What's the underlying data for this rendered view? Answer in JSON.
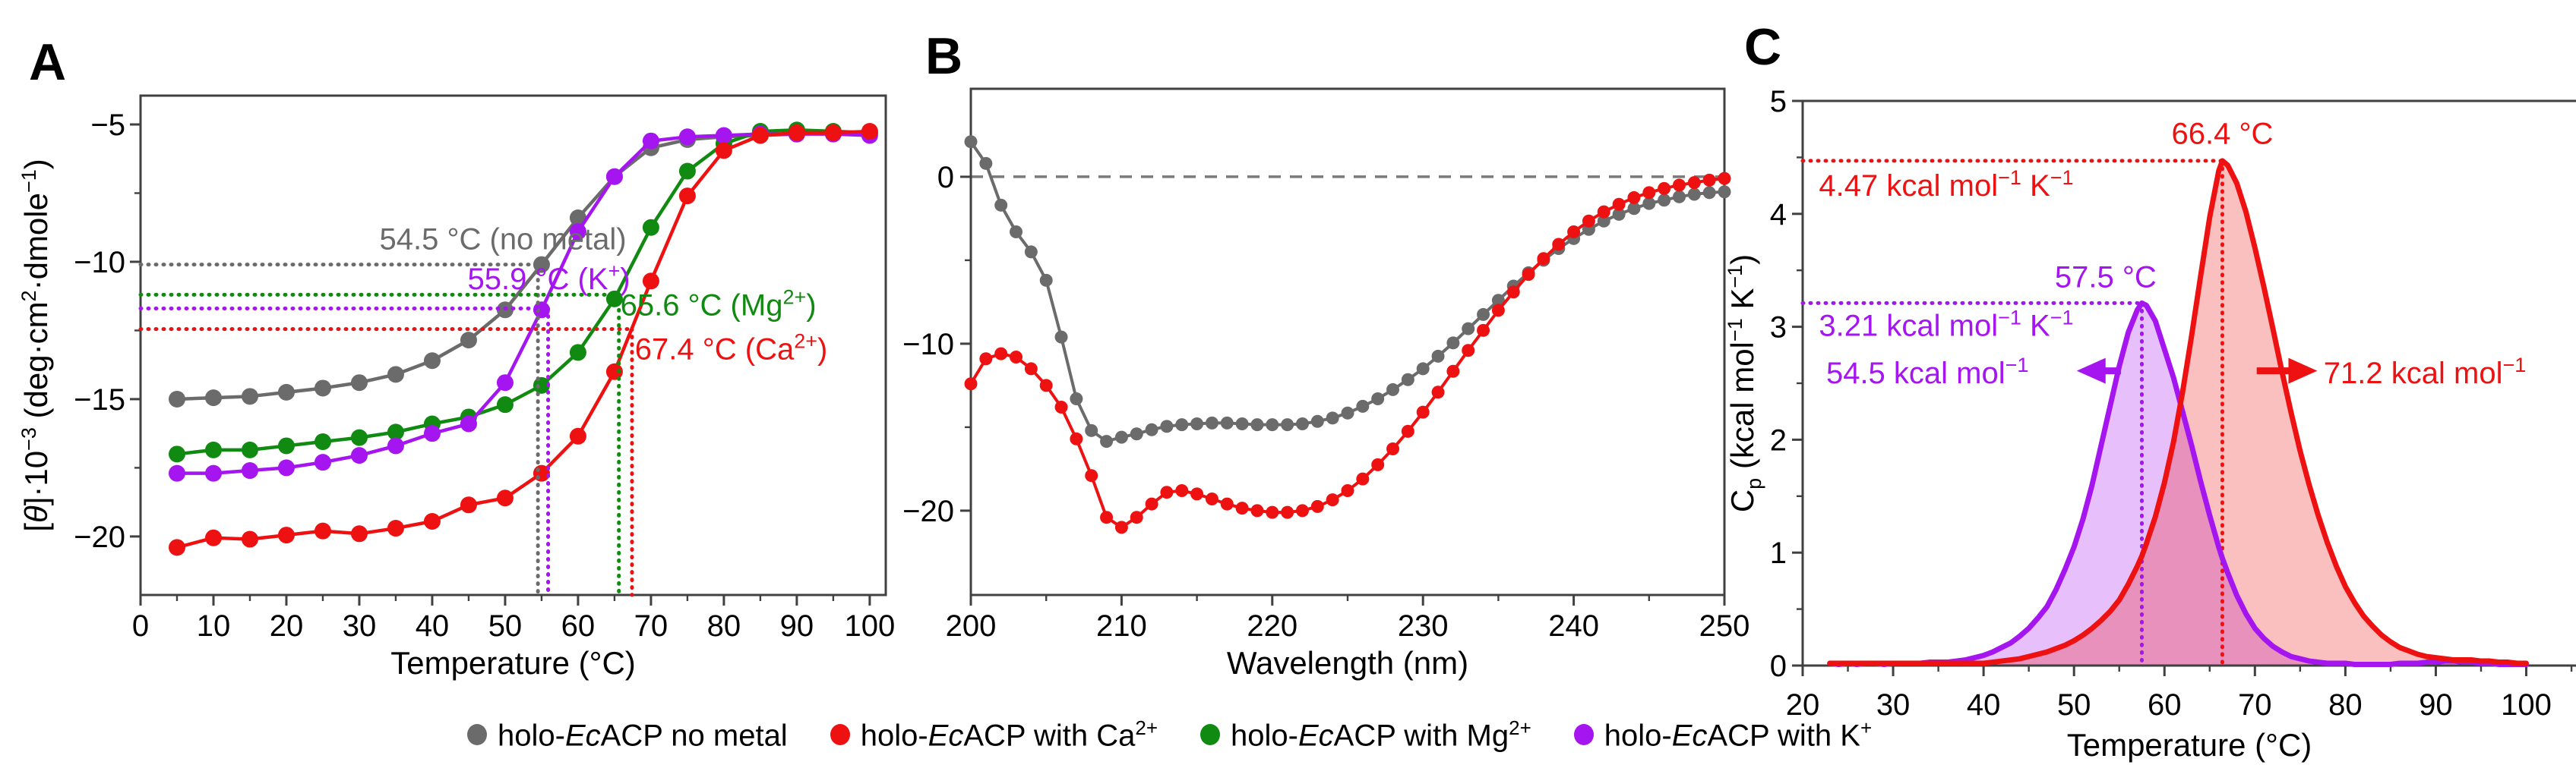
{
  "figure": {
    "panel_letters": [
      "A",
      "B",
      "C"
    ]
  },
  "colors": {
    "gray": "#6b6b6b",
    "red": "#ee1111",
    "green": "#118a11",
    "purple": "#a515f0",
    "axis": "#404040",
    "zero_dash": "#7a7a7a"
  },
  "legend": {
    "items": [
      {
        "prefix": "holo-",
        "em": "Ec",
        "rest": "ACP no metal",
        "sup": "",
        "color": "gray"
      },
      {
        "prefix": "holo-",
        "em": "Ec",
        "rest": "ACP with Ca",
        "sup": "2+",
        "color": "red"
      },
      {
        "prefix": "holo-",
        "em": "Ec",
        "rest": "ACP with Mg",
        "sup": "2+",
        "color": "green"
      },
      {
        "prefix": "holo-",
        "em": "Ec",
        "rest": "ACP with K",
        "sup": "+",
        "color": "purple"
      }
    ]
  },
  "chart_data": [
    {
      "id": "A",
      "type": "line",
      "xlabel": "Temperature (°C)",
      "ylabel_parts": [
        {
          "t": "["
        },
        {
          "t": "θ",
          "style": "i"
        },
        {
          "t": "]·10"
        },
        {
          "t": "−3",
          "style": "sup"
        },
        {
          "t": " (deg·cm"
        },
        {
          "t": "2",
          "style": "sup"
        },
        {
          "t": "·dmole"
        },
        {
          "t": "−1",
          "style": "sup"
        },
        {
          "t": ")"
        }
      ],
      "xlim": [
        0,
        102.2
      ],
      "ylim": [
        -22.13,
        -3.95
      ],
      "x_major_ticks": [
        0,
        10,
        20,
        30,
        40,
        50,
        60,
        70,
        80,
        90,
        100
      ],
      "x_minor_ticks": [
        5,
        15,
        25,
        35,
        45,
        55,
        65,
        75,
        85,
        95
      ],
      "y_major_ticks": [
        -5,
        -10,
        -15,
        -20
      ],
      "y_minor_ticks": [
        -7.5,
        -12.5,
        -17.5
      ],
      "x": [
        5,
        10,
        15,
        20,
        25,
        30,
        35,
        40,
        45,
        50,
        55,
        60,
        65,
        70,
        75,
        80,
        85,
        90,
        95,
        100
      ],
      "series": [
        {
          "name": "holo-EcACP no metal",
          "color": "gray",
          "values": [
            -15.0,
            -14.95,
            -14.9,
            -14.75,
            -14.6,
            -14.4,
            -14.1,
            -13.6,
            -12.85,
            -11.75,
            -10.1,
            -8.4,
            -6.9,
            -5.85,
            -5.55,
            -5.45,
            -5.4,
            -5.35,
            -5.3,
            -5.3
          ]
        },
        {
          "name": "holo-EcACP with Mg2+",
          "color": "green",
          "values": [
            -17.0,
            -16.85,
            -16.85,
            -16.7,
            -16.55,
            -16.4,
            -16.2,
            -15.9,
            -15.65,
            -15.2,
            -14.5,
            -13.3,
            -11.35,
            -8.75,
            -6.7,
            -5.7,
            -5.25,
            -5.2,
            -5.25,
            -5.3
          ]
        },
        {
          "name": "holo-EcACP with K+",
          "color": "purple",
          "values": [
            -17.7,
            -17.7,
            -17.6,
            -17.5,
            -17.3,
            -17.05,
            -16.7,
            -16.25,
            -15.9,
            -14.4,
            -11.75,
            -8.9,
            -6.9,
            -5.6,
            -5.45,
            -5.4,
            -5.35,
            -5.35,
            -5.35,
            -5.4
          ]
        },
        {
          "name": "holo-EcACP with Ca2+",
          "color": "red",
          "values": [
            -20.4,
            -20.05,
            -20.1,
            -19.95,
            -19.8,
            -19.9,
            -19.7,
            -19.45,
            -18.85,
            -18.6,
            -17.7,
            -16.35,
            -14.0,
            -10.7,
            -7.6,
            -5.95,
            -5.4,
            -5.3,
            -5.3,
            -5.25
          ]
        }
      ],
      "guides": [
        {
          "color": "gray",
          "y": -10.1,
          "tm": 54.5
        },
        {
          "color": "green",
          "y": -11.2,
          "tm": 65.6
        },
        {
          "color": "purple",
          "y": -11.7,
          "tm": 55.9
        },
        {
          "color": "red",
          "y": -12.45,
          "tm": 67.4
        }
      ],
      "annotations": [
        {
          "parts": [
            {
              "t": "54.5 °C (no metal)"
            }
          ],
          "color": "gray",
          "x": 49.7,
          "y": -9.55,
          "anchor": "middle"
        },
        {
          "parts": [
            {
              "t": "55.9 °C (K"
            },
            {
              "t": "+",
              "style": "sup"
            },
            {
              "t": ")"
            }
          ],
          "color": "purple",
          "x": 56.0,
          "y": -11.0,
          "anchor": "middle"
        },
        {
          "parts": [
            {
              "t": "65.6 °C (Mg"
            },
            {
              "t": "2+",
              "style": "sup"
            },
            {
              "t": ")"
            }
          ],
          "color": "green",
          "x": 65.8,
          "y": -11.95,
          "anchor": "start"
        },
        {
          "parts": [
            {
              "t": "67.4 °C (Ca"
            },
            {
              "t": "2+",
              "style": "sup"
            },
            {
              "t": ")"
            }
          ],
          "color": "red",
          "x": 67.8,
          "y": -13.55,
          "anchor": "start"
        }
      ]
    },
    {
      "id": "B",
      "type": "line",
      "xlabel": "Wavelength (nm)",
      "xlim": [
        200,
        250
      ],
      "ylim": [
        -25.05,
        5.27
      ],
      "x_major_ticks": [
        200,
        210,
        220,
        230,
        240,
        250
      ],
      "x_minor_ticks": [
        205,
        215,
        225,
        235,
        245
      ],
      "y_major_ticks": [
        0,
        -10,
        -20
      ],
      "y_minor_ticks": [
        -5,
        -15
      ],
      "zero_line": 0,
      "x_start": 200,
      "x_step": 1,
      "series": [
        {
          "name": "holo-EcACP no metal",
          "color": "gray",
          "values": [
            2.1,
            0.8,
            -1.7,
            -3.3,
            -4.5,
            -6.2,
            -9.6,
            -13.3,
            -15.2,
            -15.85,
            -15.6,
            -15.4,
            -15.15,
            -14.95,
            -14.85,
            -14.8,
            -14.75,
            -14.75,
            -14.8,
            -14.85,
            -14.85,
            -14.85,
            -14.8,
            -14.65,
            -14.45,
            -14.15,
            -13.75,
            -13.3,
            -12.75,
            -12.15,
            -11.5,
            -10.75,
            -9.95,
            -9.1,
            -8.25,
            -7.4,
            -6.55,
            -5.75,
            -5.0,
            -4.3,
            -3.7,
            -3.15,
            -2.65,
            -2.25,
            -1.9,
            -1.6,
            -1.4,
            -1.2,
            -1.05,
            -0.95,
            -0.9
          ]
        },
        {
          "name": "holo-EcACP with Ca2+",
          "color": "red",
          "values": [
            -12.4,
            -10.9,
            -10.6,
            -10.8,
            -11.5,
            -12.5,
            -13.8,
            -15.7,
            -17.9,
            -20.4,
            -21.0,
            -20.4,
            -19.6,
            -18.9,
            -18.8,
            -19.0,
            -19.3,
            -19.6,
            -19.85,
            -20.0,
            -20.1,
            -20.1,
            -20.0,
            -19.75,
            -19.35,
            -18.8,
            -18.1,
            -17.25,
            -16.3,
            -15.25,
            -14.1,
            -12.9,
            -11.65,
            -10.4,
            -9.2,
            -8.0,
            -6.9,
            -5.85,
            -4.9,
            -4.05,
            -3.3,
            -2.65,
            -2.1,
            -1.65,
            -1.25,
            -0.95,
            -0.7,
            -0.5,
            -0.35,
            -0.2,
            -0.1
          ]
        }
      ]
    },
    {
      "id": "C",
      "type": "area",
      "xlabel": "Temperature (°C)",
      "ylabel_parts": [
        {
          "t": "C"
        },
        {
          "t": "p",
          "style": "sub"
        },
        {
          "t": " (kcal mol"
        },
        {
          "t": "−1",
          "style": "sup"
        },
        {
          "t": " K"
        },
        {
          "t": "−1",
          "style": "sup"
        },
        {
          "t": ")"
        }
      ],
      "xlim": [
        20,
        105.5
      ],
      "ylim": [
        0,
        5
      ],
      "x_major_ticks": [
        20,
        30,
        40,
        50,
        60,
        70,
        80,
        90,
        100
      ],
      "x_minor_ticks": [
        25,
        35,
        45,
        55,
        65,
        75,
        85,
        95,
        105
      ],
      "y_major_ticks": [
        0,
        1,
        2,
        3,
        4,
        5
      ],
      "y_minor_ticks": [
        0.5,
        1.5,
        2.5,
        3.5,
        4.5
      ],
      "x": [
        23,
        24,
        25,
        26,
        27,
        28,
        29,
        30,
        31,
        32,
        33,
        34,
        35,
        36,
        37,
        38,
        39,
        40,
        41,
        42,
        43,
        44,
        45,
        46,
        47,
        48,
        49,
        50,
        51,
        52,
        53,
        54,
        55,
        56,
        57,
        57.5,
        58,
        59,
        60,
        61,
        62,
        63,
        64,
        65,
        66,
        66.4,
        67,
        68,
        69,
        70,
        71,
        72,
        73,
        74,
        75,
        76,
        77,
        78,
        79,
        80,
        81,
        82,
        83,
        84,
        85,
        86,
        87,
        88,
        89,
        90,
        91,
        92,
        93,
        94,
        95,
        96,
        97,
        98,
        99,
        100
      ],
      "series": [
        {
          "name": "holo-EcACP with K+",
          "color": "purple",
          "peak_tm": 57.5,
          "peak_cp": 3.21,
          "dH": "54.5 kcal mol-1",
          "values": [
            0.02,
            0.01,
            0.02,
            0.01,
            0.02,
            0.02,
            0.01,
            0.02,
            0.02,
            0.02,
            0.02,
            0.03,
            0.03,
            0.03,
            0.04,
            0.05,
            0.07,
            0.09,
            0.12,
            0.16,
            0.2,
            0.26,
            0.33,
            0.42,
            0.52,
            0.67,
            0.85,
            1.05,
            1.3,
            1.6,
            1.95,
            2.3,
            2.65,
            2.95,
            3.15,
            3.21,
            3.19,
            3.05,
            2.8,
            2.55,
            2.25,
            1.95,
            1.63,
            1.33,
            1.05,
            0.95,
            0.82,
            0.62,
            0.46,
            0.33,
            0.24,
            0.17,
            0.12,
            0.08,
            0.06,
            0.04,
            0.03,
            0.02,
            0.02,
            0.02,
            0.01,
            0.01,
            0.01,
            0.01,
            0.01,
            0.02,
            0.02,
            0.02,
            0.03,
            0.03,
            0.04,
            0.04,
            0.03,
            0.03,
            0.02,
            0.02,
            0.01,
            0.01,
            0.01,
            0.01
          ]
        },
        {
          "name": "holo-EcACP with Ca2+",
          "color": "red",
          "peak_tm": 66.4,
          "peak_cp": 4.47,
          "dH": "71.2 kcal mol-1",
          "values": [
            0.02,
            0.02,
            0.02,
            0.02,
            0.02,
            0.02,
            0.02,
            0.02,
            0.02,
            0.02,
            0.02,
            0.02,
            0.02,
            0.02,
            0.02,
            0.02,
            0.02,
            0.02,
            0.03,
            0.04,
            0.05,
            0.06,
            0.08,
            0.1,
            0.12,
            0.15,
            0.18,
            0.22,
            0.27,
            0.33,
            0.4,
            0.48,
            0.58,
            0.72,
            0.88,
            0.97,
            1.08,
            1.32,
            1.62,
            1.98,
            2.42,
            2.92,
            3.45,
            3.97,
            4.38,
            4.47,
            4.43,
            4.27,
            4.02,
            3.7,
            3.35,
            2.98,
            2.6,
            2.24,
            1.9,
            1.6,
            1.33,
            1.09,
            0.88,
            0.7,
            0.56,
            0.44,
            0.35,
            0.27,
            0.21,
            0.16,
            0.13,
            0.1,
            0.08,
            0.07,
            0.06,
            0.05,
            0.05,
            0.05,
            0.04,
            0.04,
            0.03,
            0.03,
            0.02,
            0.02
          ]
        }
      ],
      "guides": [
        {
          "color": "purple",
          "tm": 57.5,
          "cp": 3.21
        },
        {
          "color": "red",
          "tm": 66.4,
          "cp": 4.47
        }
      ],
      "annotations": [
        {
          "parts": [
            {
              "t": "66.4 °C"
            }
          ],
          "color": "red",
          "x": 66.4,
          "y": 4.62,
          "anchor": "middle"
        },
        {
          "parts": [
            {
              "t": "4.47 kcal mol"
            },
            {
              "t": "−1",
              "style": "sup"
            },
            {
              "t": " K"
            },
            {
              "t": "−1",
              "style": "sup"
            }
          ],
          "color": "red",
          "x": 21.8,
          "y": 4.16,
          "anchor": "start"
        },
        {
          "parts": [
            {
              "t": "57.5 °C"
            }
          ],
          "color": "purple",
          "x": 53.5,
          "y": 3.35,
          "anchor": "middle"
        },
        {
          "parts": [
            {
              "t": "3.21 kcal mol"
            },
            {
              "t": "−1",
              "style": "sup"
            },
            {
              "t": " K"
            },
            {
              "t": "−1",
              "style": "sup"
            }
          ],
          "color": "purple",
          "x": 21.8,
          "y": 2.92,
          "anchor": "start"
        },
        {
          "parts": [
            {
              "t": "54.5 kcal mol"
            },
            {
              "t": "−1",
              "style": "sup"
            }
          ],
          "color": "purple",
          "x": 22.6,
          "y": 2.5,
          "anchor": "start"
        },
        {
          "parts": [
            {
              "t": "71.2 kcal mol"
            },
            {
              "t": "−1",
              "style": "sup"
            }
          ],
          "color": "red",
          "x": 77.6,
          "y": 2.5,
          "anchor": "start"
        }
      ],
      "arrows": [
        {
          "color": "purple",
          "tail_x": 55.2,
          "head_x": 50.3,
          "y": 2.61,
          "dir": "left"
        },
        {
          "color": "red",
          "tail_x": 70.2,
          "head_x": 76.9,
          "y": 2.61,
          "dir": "right"
        }
      ]
    }
  ]
}
